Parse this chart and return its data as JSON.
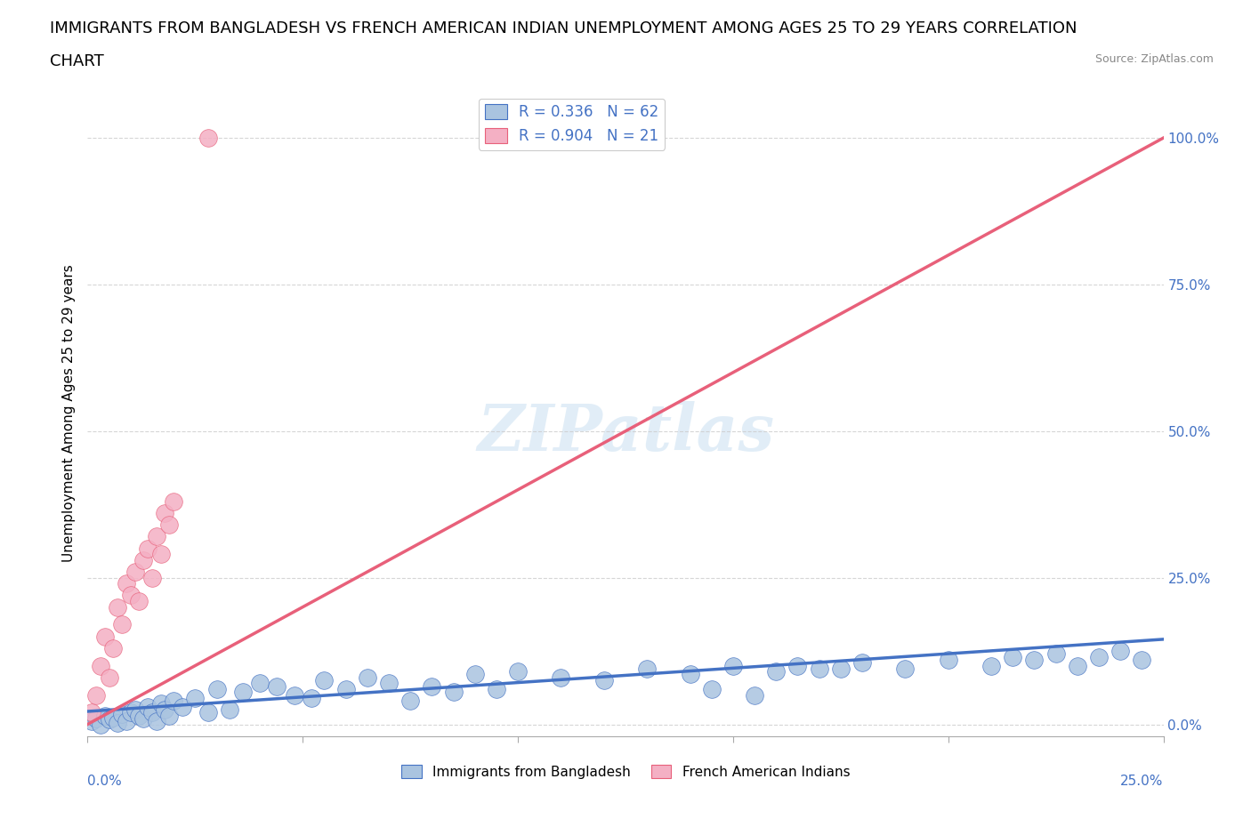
{
  "title_line1": "IMMIGRANTS FROM BANGLADESH VS FRENCH AMERICAN INDIAN UNEMPLOYMENT AMONG AGES 25 TO 29 YEARS CORRELATION",
  "title_line2": "CHART",
  "source": "Source: ZipAtlas.com",
  "ylabel": "Unemployment Among Ages 25 to 29 years",
  "yticks": [
    "0.0%",
    "25.0%",
    "50.0%",
    "75.0%",
    "100.0%"
  ],
  "ytick_vals": [
    0.0,
    0.25,
    0.5,
    0.75,
    1.0
  ],
  "xlim": [
    0.0,
    0.25
  ],
  "ylim": [
    -0.02,
    1.08
  ],
  "legend1_label": "R = 0.336   N = 62",
  "legend2_label": "R = 0.904   N = 21",
  "legend_bottom_label1": "Immigrants from Bangladesh",
  "legend_bottom_label2": "French American Indians",
  "blue_color": "#aac4e0",
  "blue_line_color": "#4472c4",
  "pink_color": "#f4b0c4",
  "pink_line_color": "#e8607a",
  "watermark_text": "ZIPatlas",
  "pink_line_x": [
    0.0,
    0.25
  ],
  "pink_line_y": [
    0.0,
    1.0
  ],
  "blue_line_x": [
    0.0,
    0.25
  ],
  "blue_line_y": [
    0.022,
    0.145
  ],
  "blue_scatter_x": [
    0.001,
    0.002,
    0.003,
    0.004,
    0.005,
    0.006,
    0.007,
    0.008,
    0.009,
    0.01,
    0.011,
    0.012,
    0.013,
    0.014,
    0.015,
    0.016,
    0.017,
    0.018,
    0.019,
    0.02,
    0.022,
    0.025,
    0.028,
    0.03,
    0.033,
    0.036,
    0.04,
    0.044,
    0.048,
    0.052,
    0.055,
    0.06,
    0.065,
    0.07,
    0.075,
    0.08,
    0.085,
    0.09,
    0.095,
    0.1,
    0.11,
    0.12,
    0.13,
    0.14,
    0.15,
    0.16,
    0.17,
    0.18,
    0.19,
    0.2,
    0.21,
    0.215,
    0.22,
    0.225,
    0.23,
    0.235,
    0.24,
    0.245,
    0.175,
    0.165,
    0.155,
    0.145
  ],
  "blue_scatter_y": [
    0.005,
    0.01,
    0.0,
    0.015,
    0.008,
    0.012,
    0.003,
    0.018,
    0.006,
    0.02,
    0.025,
    0.015,
    0.01,
    0.03,
    0.02,
    0.005,
    0.035,
    0.025,
    0.015,
    0.04,
    0.03,
    0.045,
    0.02,
    0.06,
    0.025,
    0.055,
    0.07,
    0.065,
    0.05,
    0.045,
    0.075,
    0.06,
    0.08,
    0.07,
    0.04,
    0.065,
    0.055,
    0.085,
    0.06,
    0.09,
    0.08,
    0.075,
    0.095,
    0.085,
    0.1,
    0.09,
    0.095,
    0.105,
    0.095,
    0.11,
    0.1,
    0.115,
    0.11,
    0.12,
    0.1,
    0.115,
    0.125,
    0.11,
    0.095,
    0.1,
    0.05,
    0.06
  ],
  "pink_scatter_x": [
    0.001,
    0.002,
    0.003,
    0.004,
    0.005,
    0.006,
    0.007,
    0.008,
    0.009,
    0.01,
    0.011,
    0.012,
    0.013,
    0.014,
    0.015,
    0.016,
    0.017,
    0.018,
    0.019,
    0.02,
    0.028
  ],
  "pink_scatter_y": [
    0.02,
    0.05,
    0.1,
    0.15,
    0.08,
    0.13,
    0.2,
    0.17,
    0.24,
    0.22,
    0.26,
    0.21,
    0.28,
    0.3,
    0.25,
    0.32,
    0.29,
    0.36,
    0.34,
    0.38,
    1.0
  ],
  "title_fontsize": 13,
  "axis_label_fontsize": 11,
  "tick_fontsize": 11
}
